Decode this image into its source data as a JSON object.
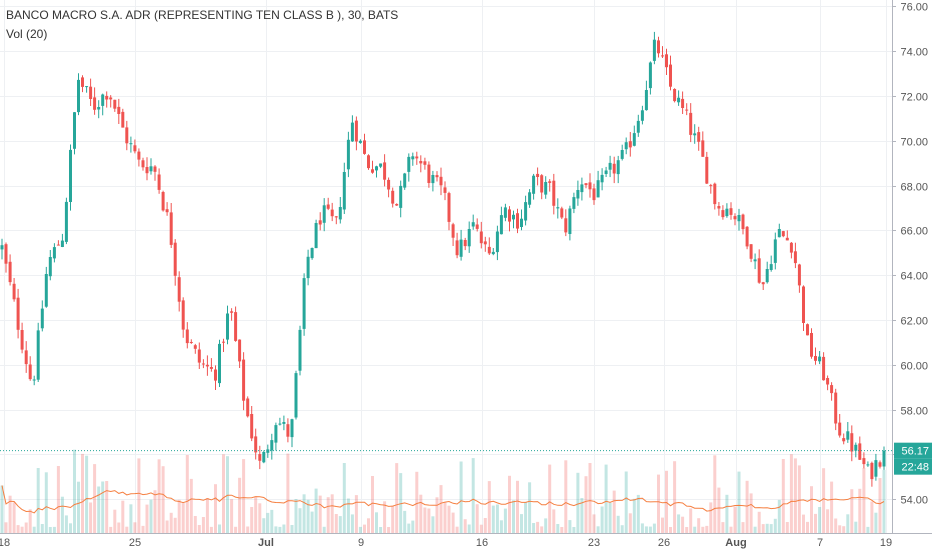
{
  "chart_data": {
    "type": "candlestick",
    "title": "BANCO MACRO S.A. ADR (REPRESENTING TEN CLASS B ), 30, BATS",
    "indicator_label": "Vol (20)",
    "x_tick_labels": [
      "18",
      "25",
      "Jul",
      "9",
      "16",
      "23",
      "26",
      "Aug",
      "7",
      "19"
    ],
    "y_ticks": [
      54,
      56,
      58,
      60,
      62,
      64,
      66,
      68,
      70,
      72,
      74,
      76
    ],
    "ylim": [
      53.3,
      76.1
    ],
    "grid": true,
    "last_price_label": "56.17",
    "countdown_label": "22:48",
    "price_path": [
      65.2,
      62,
      59,
      64.5,
      65.8,
      72.8,
      71.5,
      72.3,
      70.4,
      69,
      68.8,
      66.2,
      61.4,
      60.1,
      59.6,
      62.6,
      58.1,
      55.4,
      57.6,
      56.8,
      64.5,
      66.8,
      66.2,
      71,
      69,
      68.8,
      67.1,
      69.5,
      68.5,
      67.6,
      65,
      66.2,
      64.8,
      67,
      66.4,
      68.2,
      67.8,
      66,
      68.3,
      67.6,
      68.6,
      69.4,
      71.4,
      74.4,
      72.3,
      71,
      69.3,
      67.1,
      66.9,
      65.7,
      63.5,
      65.9,
      65.4,
      60.8,
      59.7,
      57.2,
      56.3,
      55.1,
      56.17
    ],
    "colors": {
      "up": "#26a69a",
      "down": "#ef5350",
      "vol_ma": "#f57f40"
    }
  },
  "icons": {
    "volume-histogram": "bars",
    "volume-ma-line": "line"
  }
}
